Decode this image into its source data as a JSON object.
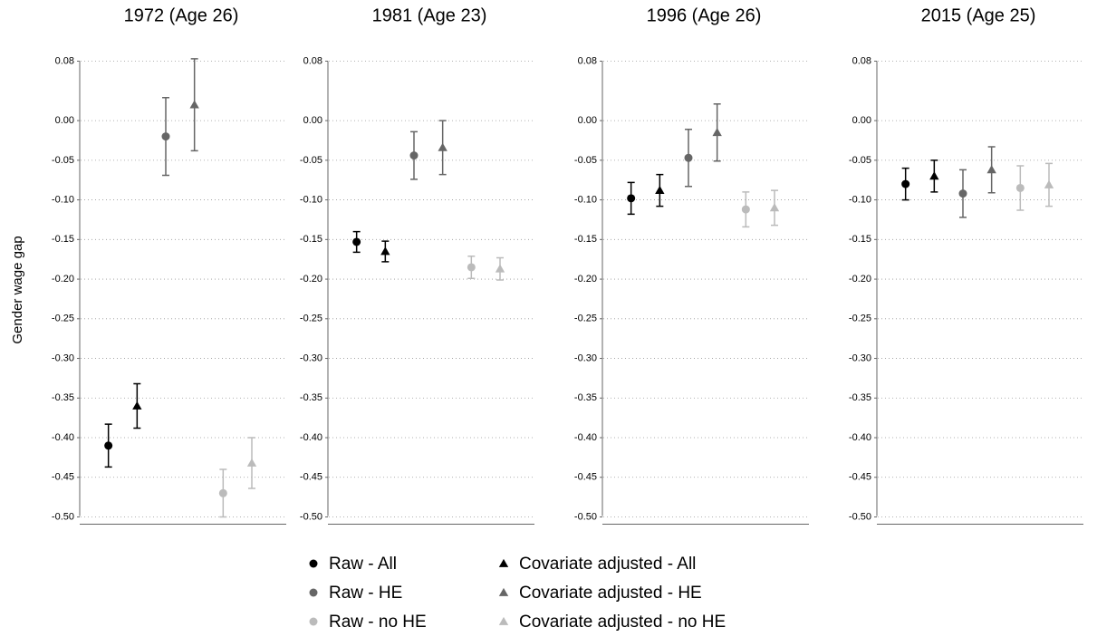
{
  "chart_data": [
    {
      "type": "errorbar",
      "title": "1972 (Age 26)",
      "ylabel": "Gender wage gap",
      "ylim": [
        -0.508,
        0.075
      ],
      "yticks": [
        {
          "value": 0.075,
          "label": "0.08"
        },
        {
          "value": 0,
          "label": "0.00"
        },
        -0.05,
        {
          "value": -0.1,
          "label": "-0.10"
        },
        -0.15,
        {
          "value": -0.2,
          "label": "-0.20"
        },
        -0.25,
        {
          "value": -0.3,
          "label": "-0.30"
        },
        -0.35,
        {
          "value": -0.4,
          "label": "-0.40"
        },
        -0.45,
        {
          "value": -0.5,
          "label": "-0.50"
        }
      ],
      "grid": true,
      "series": [
        {
          "name": "Raw - All",
          "color": "#000000",
          "marker": "circle",
          "values": [
            -0.41
          ],
          "errors": [
            0.027
          ]
        },
        {
          "name": "Covariate adjusted - All",
          "color": "#000000",
          "marker": "triangle",
          "values": [
            -0.36
          ],
          "errors": [
            0.028
          ]
        },
        {
          "name": "Raw - HE",
          "color": "#666666",
          "marker": "circle",
          "values": [
            -0.02
          ],
          "errors": [
            0.049
          ]
        },
        {
          "name": "Covariate adjusted - HE",
          "color": "#666666",
          "marker": "triangle",
          "values": [
            0.02
          ],
          "errors": [
            0.058
          ]
        },
        {
          "name": "Raw - no HE",
          "color": "#bbbbbb",
          "marker": "circle",
          "values": [
            -0.47
          ],
          "errors": [
            0.03
          ]
        },
        {
          "name": "Covariate adjusted - no HE",
          "color": "#bbbbbb",
          "marker": "triangle",
          "values": [
            -0.432
          ],
          "errors": [
            0.032
          ]
        }
      ]
    },
    {
      "type": "errorbar",
      "title": "1981 (Age 23)",
      "ylim": [
        -0.508,
        0.075
      ],
      "yticks": [
        {
          "value": 0.075,
          "label": "0.08"
        },
        {
          "value": 0,
          "label": "0.00"
        },
        -0.05,
        {
          "value": -0.1,
          "label": "-0.10"
        },
        -0.15,
        {
          "value": -0.2,
          "label": "-0.20"
        },
        -0.25,
        {
          "value": -0.3,
          "label": "-0.30"
        },
        -0.35,
        {
          "value": -0.4,
          "label": "-0.40"
        },
        -0.45,
        {
          "value": -0.5,
          "label": "-0.50"
        }
      ],
      "grid": true,
      "series": [
        {
          "color": "#000000",
          "marker": "circle",
          "values": [
            -0.153
          ],
          "errors": [
            0.013
          ]
        },
        {
          "color": "#000000",
          "marker": "triangle",
          "values": [
            -0.165
          ],
          "errors": [
            0.013
          ]
        },
        {
          "color": "#666666",
          "marker": "circle",
          "values": [
            -0.044
          ],
          "errors": [
            0.03
          ]
        },
        {
          "color": "#666666",
          "marker": "triangle",
          "values": [
            -0.034
          ],
          "errors": [
            0.034
          ]
        },
        {
          "color": "#bbbbbb",
          "marker": "circle",
          "values": [
            -0.185
          ],
          "errors": [
            0.014
          ]
        },
        {
          "color": "#bbbbbb",
          "marker": "triangle",
          "values": [
            -0.187
          ],
          "errors": [
            0.014
          ]
        }
      ]
    },
    {
      "type": "errorbar",
      "title": "1996 (Age 26)",
      "ylim": [
        -0.508,
        0.075
      ],
      "yticks": [
        {
          "value": 0.075,
          "label": "0.08"
        },
        {
          "value": 0,
          "label": "0.00"
        },
        -0.05,
        {
          "value": -0.1,
          "label": "-0.10"
        },
        -0.15,
        {
          "value": -0.2,
          "label": "-0.20"
        },
        -0.25,
        {
          "value": -0.3,
          "label": "-0.30"
        },
        -0.35,
        {
          "value": -0.4,
          "label": "-0.40"
        },
        -0.45,
        {
          "value": -0.5,
          "label": "-0.50"
        }
      ],
      "grid": true,
      "series": [
        {
          "color": "#000000",
          "marker": "circle",
          "values": [
            -0.098
          ],
          "errors": [
            0.02
          ]
        },
        {
          "color": "#000000",
          "marker": "triangle",
          "values": [
            -0.088
          ],
          "errors": [
            0.02
          ]
        },
        {
          "color": "#666666",
          "marker": "circle",
          "values": [
            -0.047
          ],
          "errors": [
            0.036
          ]
        },
        {
          "color": "#666666",
          "marker": "triangle",
          "values": [
            -0.015
          ],
          "errors": [
            0.036
          ]
        },
        {
          "color": "#bbbbbb",
          "marker": "circle",
          "values": [
            -0.112
          ],
          "errors": [
            0.022
          ]
        },
        {
          "color": "#bbbbbb",
          "marker": "triangle",
          "values": [
            -0.11
          ],
          "errors": [
            0.022
          ]
        }
      ]
    },
    {
      "type": "errorbar",
      "title": "2015 (Age 25)",
      "ylim": [
        -0.508,
        0.075
      ],
      "yticks": [
        {
          "value": 0.075,
          "label": "0.08"
        },
        {
          "value": 0,
          "label": "0.00"
        },
        -0.05,
        {
          "value": -0.1,
          "label": "-0.10"
        },
        -0.15,
        {
          "value": -0.2,
          "label": "-0.20"
        },
        -0.25,
        {
          "value": -0.3,
          "label": "-0.30"
        },
        -0.35,
        {
          "value": -0.4,
          "label": "-0.40"
        },
        -0.45,
        {
          "value": -0.5,
          "label": "-0.50"
        }
      ],
      "grid": true,
      "series": [
        {
          "color": "#000000",
          "marker": "circle",
          "values": [
            -0.08
          ],
          "errors": [
            0.02
          ]
        },
        {
          "color": "#000000",
          "marker": "triangle",
          "values": [
            -0.07
          ],
          "errors": [
            0.02
          ]
        },
        {
          "color": "#666666",
          "marker": "circle",
          "values": [
            -0.092
          ],
          "errors": [
            0.03
          ]
        },
        {
          "color": "#666666",
          "marker": "triangle",
          "values": [
            -0.062
          ],
          "errors": [
            0.029
          ]
        },
        {
          "color": "#bbbbbb",
          "marker": "circle",
          "values": [
            -0.085
          ],
          "errors": [
            0.028
          ]
        },
        {
          "color": "#bbbbbb",
          "marker": "triangle",
          "values": [
            -0.081
          ],
          "errors": [
            0.027
          ]
        }
      ]
    }
  ]
}
